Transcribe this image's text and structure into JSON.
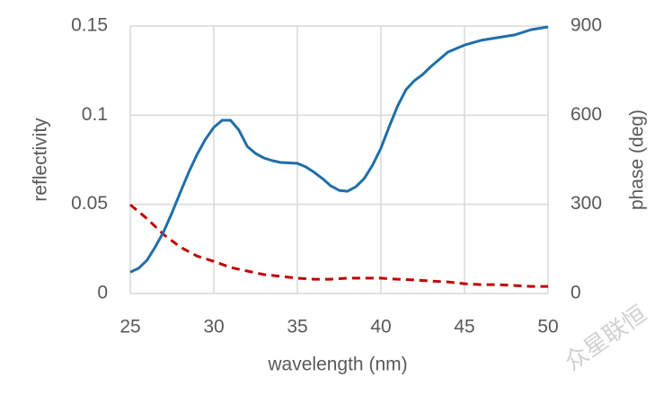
{
  "chart_data": {
    "type": "line",
    "x_label": "wavelength (nm)",
    "y_label": "reflectivity",
    "y2_label": "phase (deg)",
    "xlim": [
      25,
      50
    ],
    "xticks": [
      25,
      30,
      35,
      40,
      45,
      50
    ],
    "ylim": [
      0,
      0.15
    ],
    "yticks": [
      0,
      0.05,
      0.1,
      0.15
    ],
    "y2lim": [
      0,
      900
    ],
    "y2ticks": [
      0,
      300,
      600,
      900
    ],
    "grid": true,
    "series": [
      {
        "name": "reflectivity",
        "color": "#c00000",
        "dash": true,
        "x": [
          25,
          26,
          27,
          28,
          29,
          30,
          31,
          32,
          33,
          34,
          35,
          36,
          37,
          38,
          39,
          40,
          41,
          42,
          43,
          44,
          45,
          46,
          47,
          48,
          49,
          50
        ],
        "values": [
          0.0498,
          0.042,
          0.033,
          0.026,
          0.021,
          0.018,
          0.0146,
          0.0126,
          0.0106,
          0.0096,
          0.0086,
          0.008,
          0.008,
          0.0086,
          0.0086,
          0.0086,
          0.008,
          0.0076,
          0.007,
          0.0065,
          0.0055,
          0.005,
          0.005,
          0.0045,
          0.004,
          0.004
        ]
      },
      {
        "name": "phase",
        "color": "#1f6fa8",
        "axis": "y2",
        "x": [
          25,
          25.5,
          26,
          26.5,
          27,
          27.5,
          28,
          28.5,
          29,
          29.5,
          30,
          30.5,
          31,
          31.5,
          32,
          32.5,
          33,
          33.5,
          34,
          35,
          35.5,
          36,
          36.5,
          37,
          37.5,
          38,
          38.5,
          39,
          39.5,
          40,
          40.5,
          41,
          41.5,
          42,
          42.5,
          43,
          44,
          45,
          46,
          47,
          48,
          49,
          50
        ],
        "values": [
          72,
          85,
          112,
          157,
          208,
          272,
          341,
          408,
          468,
          519,
          559,
          583,
          583,
          550,
          495,
          471,
          456,
          447,
          441,
          438,
          426,
          408,
          387,
          362,
          347,
          344,
          359,
          387,
          432,
          489,
          562,
          631,
          686,
          716,
          737,
          764,
          812,
          836,
          852,
          861,
          870,
          888,
          897
        ]
      }
    ],
    "watermark": "众星联恒"
  }
}
